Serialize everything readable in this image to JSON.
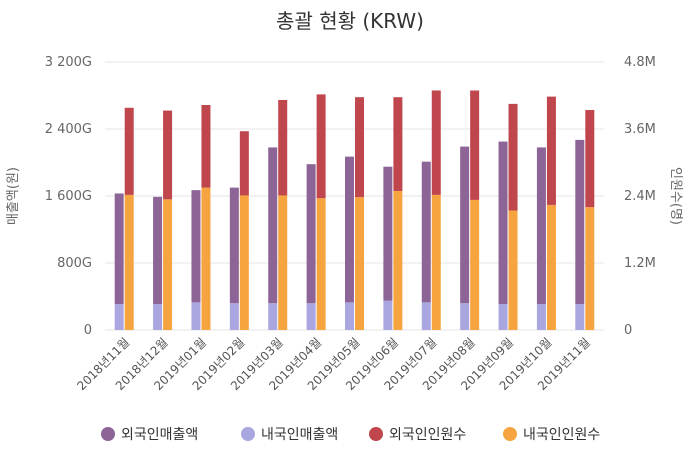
{
  "chart_data": {
    "type": "bar",
    "title": "총괄 현황 (KRW)",
    "ylabel_left": "매출액(원)",
    "ylabel_right": "인원수(명)",
    "categories": [
      "2018년11월",
      "2018년12월",
      "2019년01월",
      "2019년02월",
      "2019년03월",
      "2019년04월",
      "2019년05월",
      "2019년06월",
      "2019년07월",
      "2019년08월",
      "2019년09월",
      "2019년10월",
      "2019년11월"
    ],
    "y_left": {
      "min": 0,
      "max": 3200,
      "ticks": [
        0,
        800,
        1600,
        2400,
        3200
      ],
      "tick_labels": [
        "0",
        "800G",
        "1 600G",
        "2 400G",
        "3 200G"
      ]
    },
    "y_right": {
      "min": 0,
      "max": 4.8,
      "ticks": [
        0,
        1.2,
        2.4,
        3.6,
        4.8
      ],
      "tick_labels": [
        "0",
        "1.2M",
        "2.4M",
        "3.6M",
        "4.8M"
      ]
    },
    "grid": true,
    "legend_position": "bottom",
    "colors": {
      "foreign_sales": "#8c6496",
      "domestic_sales": "#a9a6e0",
      "foreign_visitors": "#c0464e",
      "domestic_visitors": "#f5a43f"
    },
    "series": [
      {
        "name": "외국인매출액",
        "axis": "left",
        "stack": "sales",
        "values": [
          1320,
          1280,
          1340,
          1380,
          1860,
          1660,
          1740,
          1600,
          1680,
          1870,
          1940,
          1870,
          1960
        ]
      },
      {
        "name": "내국인매출액",
        "axis": "left",
        "stack": "sales",
        "values": [
          310,
          310,
          330,
          320,
          320,
          320,
          330,
          350,
          330,
          320,
          310,
          310,
          310
        ]
      },
      {
        "name": "외국인인원수",
        "axis": "right",
        "stack": "visitors",
        "values": [
          1.56,
          1.59,
          1.48,
          1.15,
          1.71,
          1.86,
          1.79,
          1.68,
          1.87,
          1.96,
          1.91,
          1.94,
          1.74
        ]
      },
      {
        "name": "내국인인원수",
        "axis": "right",
        "stack": "visitors",
        "values": [
          2.42,
          2.34,
          2.55,
          2.41,
          2.41,
          2.36,
          2.38,
          2.49,
          2.42,
          2.33,
          2.14,
          2.24,
          2.2
        ]
      }
    ]
  }
}
